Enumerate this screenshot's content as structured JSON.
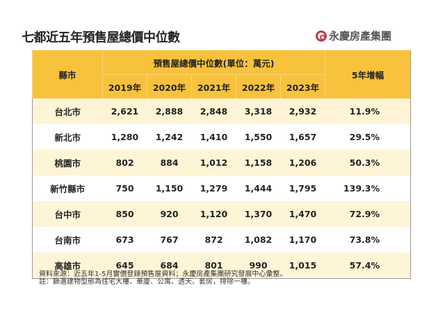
{
  "title": "七都近五年預售屋總價中位數",
  "logo": {
    "text": "永慶房產集團",
    "color": "#c33a47"
  },
  "colors": {
    "header": "#f8c23c",
    "row_alt": "#fef4d6"
  },
  "chart_data": {
    "type": "table",
    "title": "七都近五年預售屋總價中位數",
    "columns": {
      "city": "縣市",
      "group": "預售屋總價中位數(單位：萬元)",
      "years": [
        "2019年",
        "2020年",
        "2021年",
        "2022年",
        "2023年"
      ],
      "growth": "5年增幅"
    },
    "rows": [
      {
        "city": "台北市",
        "values": [
          "2,621",
          "2,888",
          "2,848",
          "3,318",
          "2,932"
        ],
        "growth": "11.9%"
      },
      {
        "city": "新北市",
        "values": [
          "1,280",
          "1,242",
          "1,410",
          "1,550",
          "1,657"
        ],
        "growth": "29.5%"
      },
      {
        "city": "桃園市",
        "values": [
          "802",
          "884",
          "1,012",
          "1,158",
          "1,206"
        ],
        "growth": "50.3%"
      },
      {
        "city": "新竹縣市",
        "values": [
          "750",
          "1,150",
          "1,279",
          "1,444",
          "1,795"
        ],
        "growth": "139.3%"
      },
      {
        "city": "台中市",
        "values": [
          "850",
          "920",
          "1,120",
          "1,370",
          "1,470"
        ],
        "growth": "72.9%"
      },
      {
        "city": "台南市",
        "values": [
          "673",
          "767",
          "872",
          "1,082",
          "1,170"
        ],
        "growth": "73.8%"
      },
      {
        "city": "高雄市",
        "values": [
          "645",
          "684",
          "801",
          "990",
          "1,015"
        ],
        "growth": "57.4%"
      }
    ]
  },
  "notes": [
    "資料來源：近五年1-5月實價登錄預售屋資料；永慶房產集團研究發展中心彙整。",
    "註：篩選建物型態為住宅大樓、華廈、公寓、透天、套房，排除一樓。"
  ]
}
